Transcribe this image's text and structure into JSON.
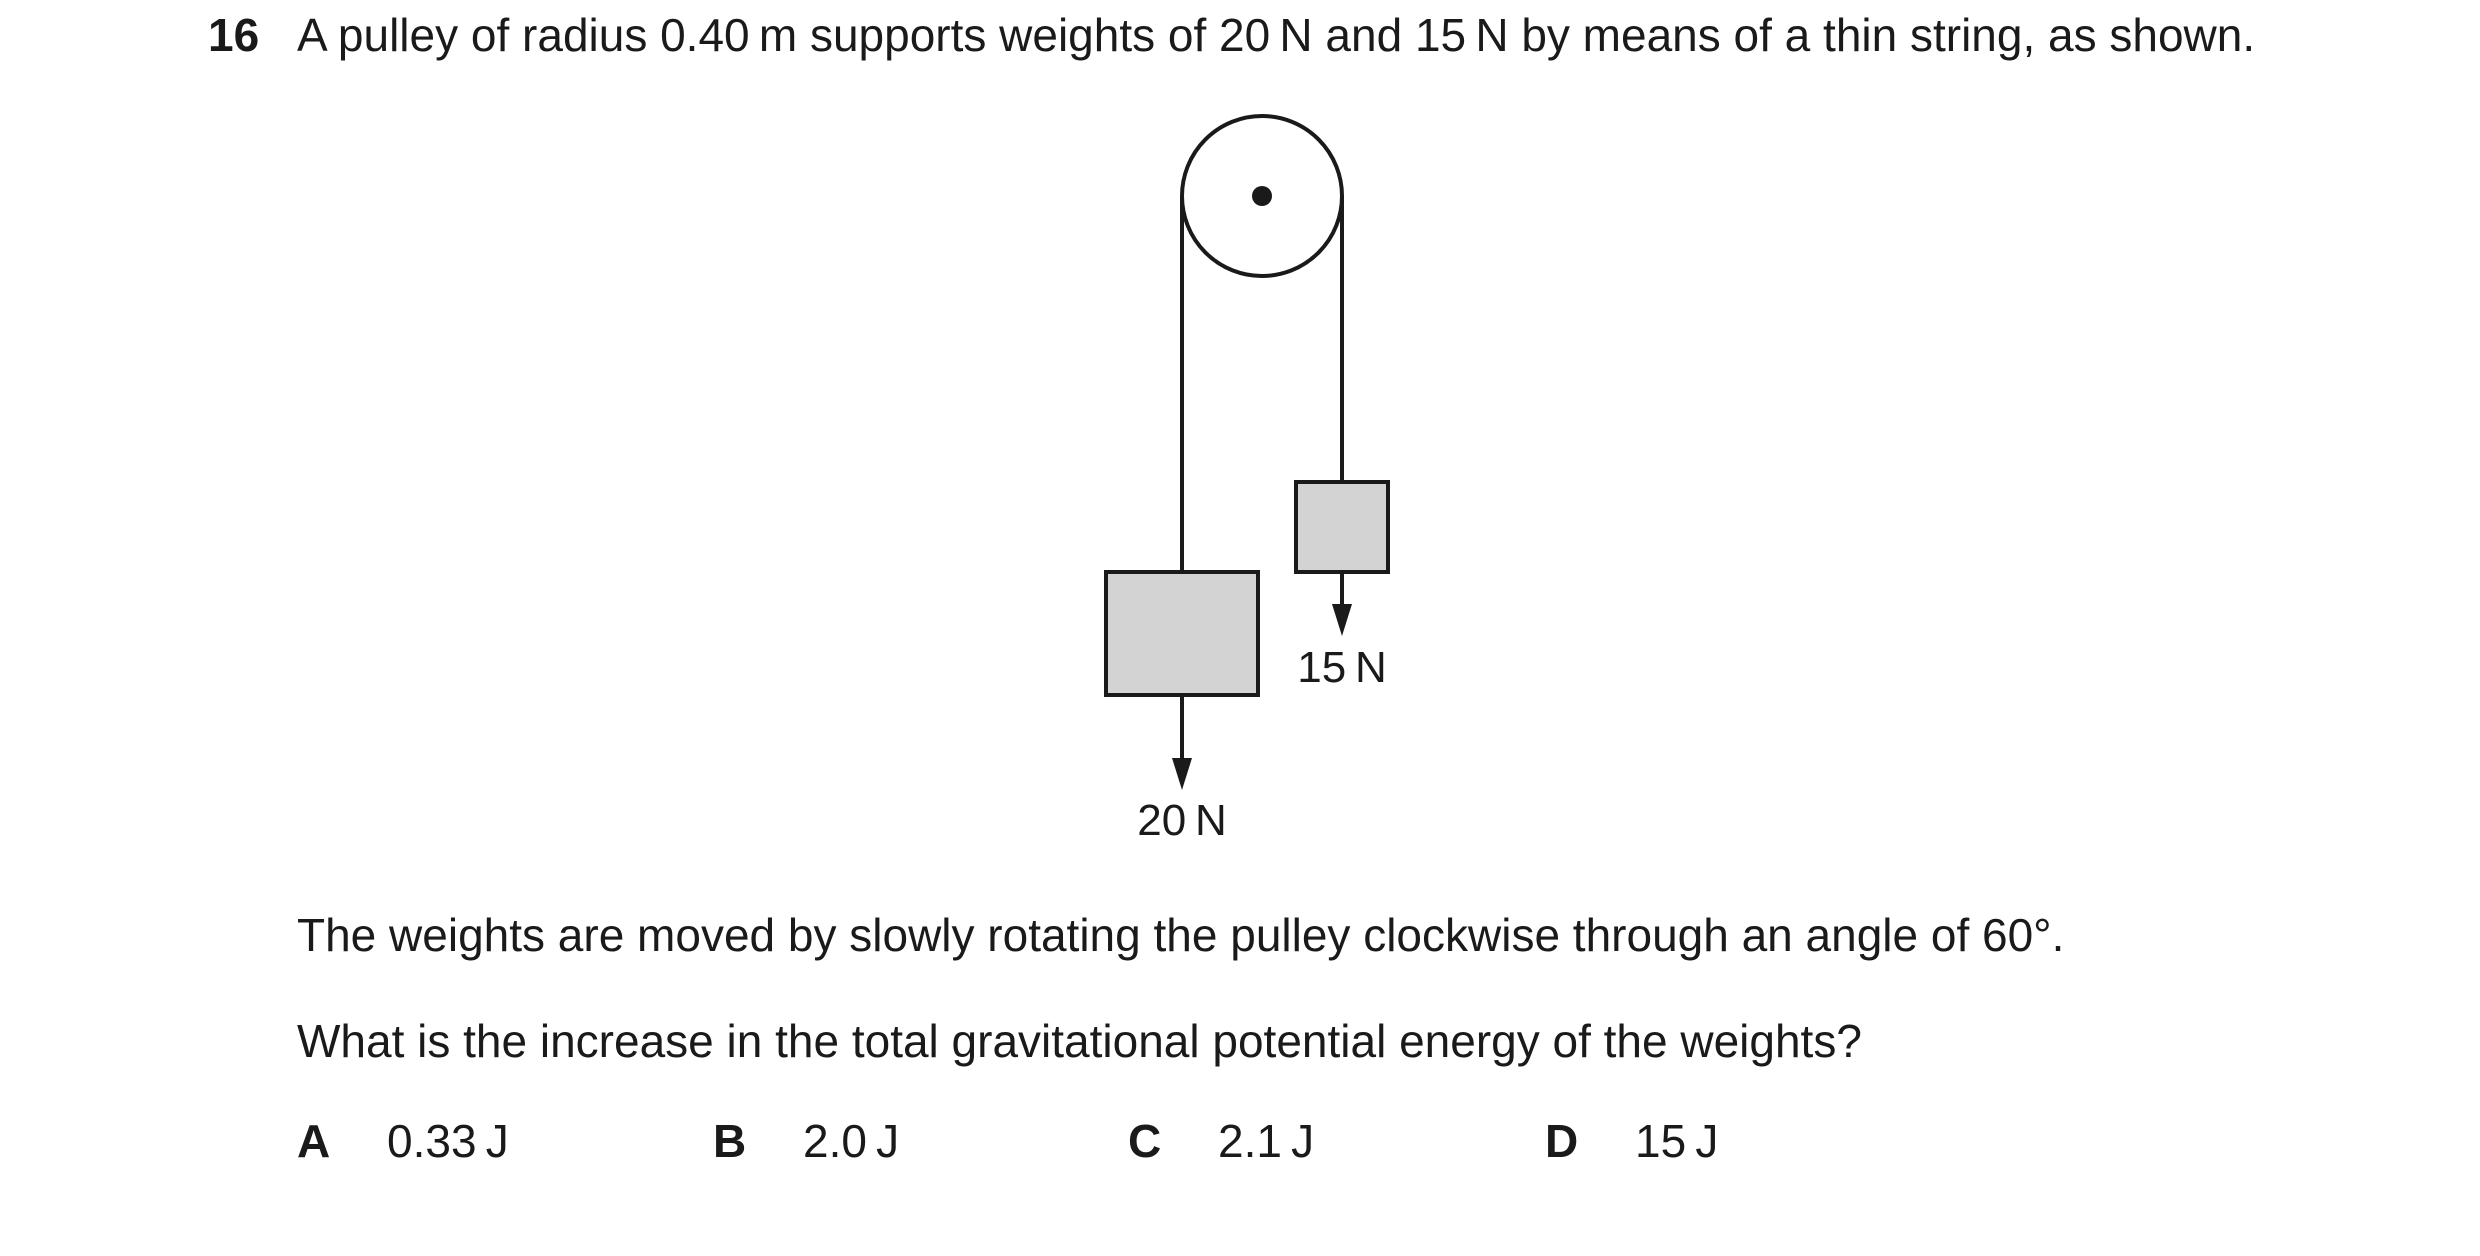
{
  "question": {
    "number": "16",
    "stem": "A pulley of radius 0.40 m supports weights of 20 N and 15 N by means of a thin string, as shown."
  },
  "diagram": {
    "left_weight_label": "20 N",
    "right_weight_label": "15 N",
    "colors": {
      "line": "#1a1a1a",
      "weight_fill": "#d3d3d3"
    }
  },
  "paragraphs": {
    "p1": "The weights are moved by slowly rotating the pulley clockwise through an angle of 60°.",
    "p2": "What is the increase in the total gravitational potential energy of the weights?"
  },
  "options": [
    {
      "letter": "A",
      "value": "0.33 J"
    },
    {
      "letter": "B",
      "value": "2.0 J"
    },
    {
      "letter": "C",
      "value": "2.1 J"
    },
    {
      "letter": "D",
      "value": "15 J"
    }
  ]
}
